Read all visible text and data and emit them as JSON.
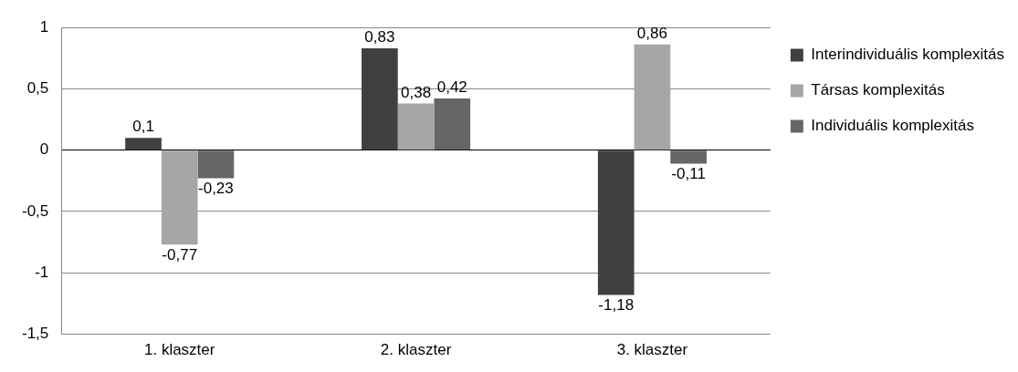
{
  "chart_data": {
    "type": "bar",
    "categories": [
      "1. klaszter",
      "2. klaszter",
      "3. klaszter"
    ],
    "series": [
      {
        "name": "Interindividuális komplexitás",
        "color": "#404040",
        "values": [
          0.1,
          0.83,
          -1.18
        ],
        "value_labels": [
          "0,1",
          "0,83",
          "-1,18"
        ]
      },
      {
        "name": "Társas komplexitás",
        "color": "#a6a6a6",
        "values": [
          -0.77,
          0.38,
          0.86
        ],
        "value_labels": [
          "-0,77",
          "0,38",
          "0,86"
        ]
      },
      {
        "name": "Individuális komplexitás",
        "color": "#666666",
        "values": [
          -0.23,
          0.42,
          -0.11
        ],
        "value_labels": [
          "-0,23",
          "0,42",
          "-0,11"
        ]
      }
    ],
    "ylim": [
      -1.5,
      1
    ],
    "yticks": [
      {
        "value": -1.5,
        "label": "-1,5"
      },
      {
        "value": -1,
        "label": "-1"
      },
      {
        "value": -0.5,
        "label": "-0,5"
      },
      {
        "value": 0,
        "label": "0"
      },
      {
        "value": 0.5,
        "label": "0,5"
      },
      {
        "value": 1,
        "label": "1"
      }
    ],
    "grid": "y",
    "legend": "right"
  }
}
